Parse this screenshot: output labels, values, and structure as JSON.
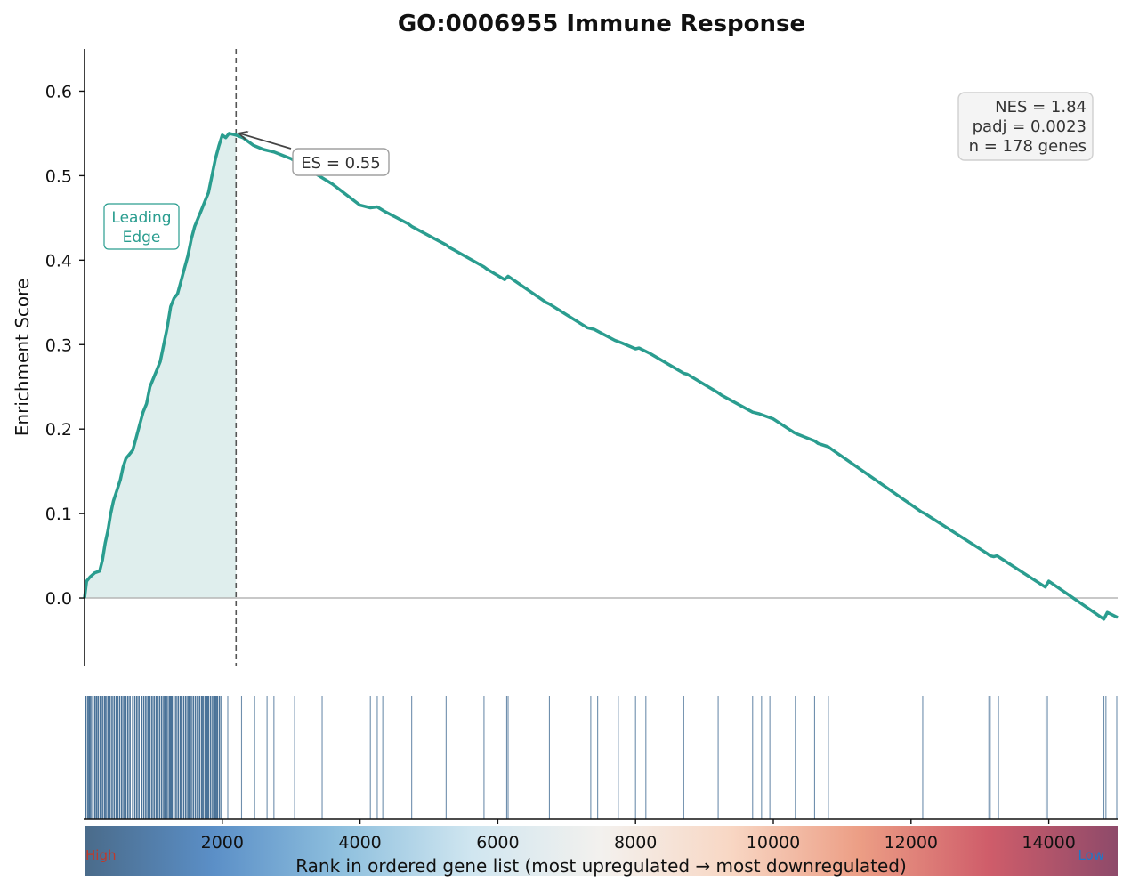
{
  "chart_data": {
    "type": "line",
    "title": "GO:0006955  Immune Response",
    "ylabel": "Enrichment Score",
    "xlabel": "Rank in ordered gene list (most upregulated → most downregulated)",
    "xlim": [
      0,
      15000
    ],
    "ylim": [
      -0.08,
      0.65
    ],
    "x_ticks": [
      2000,
      4000,
      6000,
      8000,
      10000,
      12000,
      14000
    ],
    "y_ticks": [
      0.0,
      0.1,
      0.2,
      0.3,
      0.4,
      0.5,
      0.6
    ],
    "series": [
      {
        "x": [
          0,
          30,
          80,
          150,
          220,
          260,
          300,
          340,
          380,
          420,
          480,
          520,
          560,
          600,
          650,
          700,
          750,
          800,
          850,
          900,
          950,
          1000,
          1050,
          1100,
          1150,
          1200,
          1250,
          1300,
          1350,
          1400,
          1450,
          1500,
          1550,
          1600,
          1650,
          1700,
          1750,
          1800,
          1850,
          1900,
          1950,
          2000,
          2050,
          2100,
          2200,
          2300,
          2450,
          2600,
          2750,
          3000,
          3400,
          3600,
          4000,
          4150,
          4250,
          4350,
          4700,
          4750,
          5250,
          5300,
          5800,
          5850,
          6100,
          6150,
          6700,
          6750,
          7300,
          7400,
          7700,
          7800,
          8000,
          8050,
          8200,
          8700,
          8750,
          9200,
          9250,
          9700,
          9800,
          9900,
          10000,
          10300,
          10350,
          10600,
          10650,
          10800,
          10850,
          12150,
          12200,
          13100,
          13150,
          13200,
          13250,
          13950,
          14000,
          14800,
          14850,
          15000
        ],
        "y": [
          0.0,
          0.02,
          0.025,
          0.03,
          0.032,
          0.045,
          0.065,
          0.08,
          0.1,
          0.115,
          0.13,
          0.14,
          0.155,
          0.165,
          0.17,
          0.175,
          0.19,
          0.205,
          0.22,
          0.23,
          0.25,
          0.26,
          0.27,
          0.28,
          0.3,
          0.32,
          0.345,
          0.355,
          0.36,
          0.375,
          0.39,
          0.405,
          0.425,
          0.44,
          0.45,
          0.46,
          0.47,
          0.48,
          0.5,
          0.52,
          0.535,
          0.548,
          0.545,
          0.55,
          0.548,
          0.545,
          0.536,
          0.531,
          0.528,
          0.52,
          0.5,
          0.49,
          0.465,
          0.462,
          0.463,
          0.458,
          0.443,
          0.44,
          0.418,
          0.415,
          0.392,
          0.389,
          0.377,
          0.381,
          0.35,
          0.348,
          0.32,
          0.318,
          0.305,
          0.302,
          0.295,
          0.296,
          0.29,
          0.266,
          0.265,
          0.243,
          0.24,
          0.22,
          0.218,
          0.215,
          0.212,
          0.196,
          0.194,
          0.186,
          0.183,
          0.179,
          0.176,
          0.102,
          0.1,
          0.053,
          0.05,
          0.049,
          0.05,
          0.013,
          0.02,
          -0.025,
          -0.017,
          -0.023
        ]
      }
    ],
    "peak": {
      "x": 2200,
      "y": 0.55,
      "label": "ES = 0.55"
    },
    "hits": [
      20,
      50,
      70,
      90,
      120,
      150,
      175,
      200,
      230,
      260,
      290,
      310,
      340,
      370,
      400,
      430,
      460,
      480,
      510,
      540,
      570,
      600,
      630,
      660,
      700,
      730,
      760,
      790,
      830,
      860,
      890,
      920,
      950,
      980,
      1010,
      1040,
      1060,
      1090,
      1120,
      1150,
      1170,
      1200,
      1230,
      1250,
      1270,
      1300,
      1330,
      1360,
      1390,
      1410,
      1440,
      1470,
      1500,
      1520,
      1550,
      1580,
      1610,
      1640,
      1670,
      1700,
      1720,
      1750,
      1780,
      1800,
      1830,
      1860,
      1890,
      1910,
      1930,
      1960,
      1990,
      2080,
      2280,
      2470,
      2650,
      2750,
      3050,
      3450,
      4150,
      4250,
      4330,
      4750,
      5250,
      5800,
      6130,
      6150,
      6750,
      7350,
      7450,
      7750,
      8000,
      8150,
      8700,
      9200,
      9700,
      9830,
      9950,
      10320,
      10600,
      10800,
      12170,
      13130,
      13150,
      13270,
      13960,
      13980,
      14800,
      14830,
      15000
    ],
    "colorbar": {
      "colors": [
        "#4a6b8a",
        "#5b8fc7",
        "#8fc0de",
        "#d0e6f0",
        "#f3f1ee",
        "#f8d7c4",
        "#ec9e85",
        "#cf5d6a",
        "#8e4a6a"
      ],
      "high_label": "High",
      "low_label": "Low",
      "high_color": "#c0392b",
      "low_color": "#1f78c8"
    }
  },
  "annotations": {
    "leading_edge_line1": "Leading",
    "leading_edge_line2": "Edge",
    "stats_nes": "NES = 1.84",
    "stats_padj": "padj = 0.0023",
    "stats_n": "n = 178 genes"
  },
  "colors": {
    "line": "#2a9d8f",
    "fill": "#dfeeed",
    "hit": "#3f6a92",
    "zero_line": "#b5b5b5",
    "stats_box": "#f4f4f4"
  }
}
